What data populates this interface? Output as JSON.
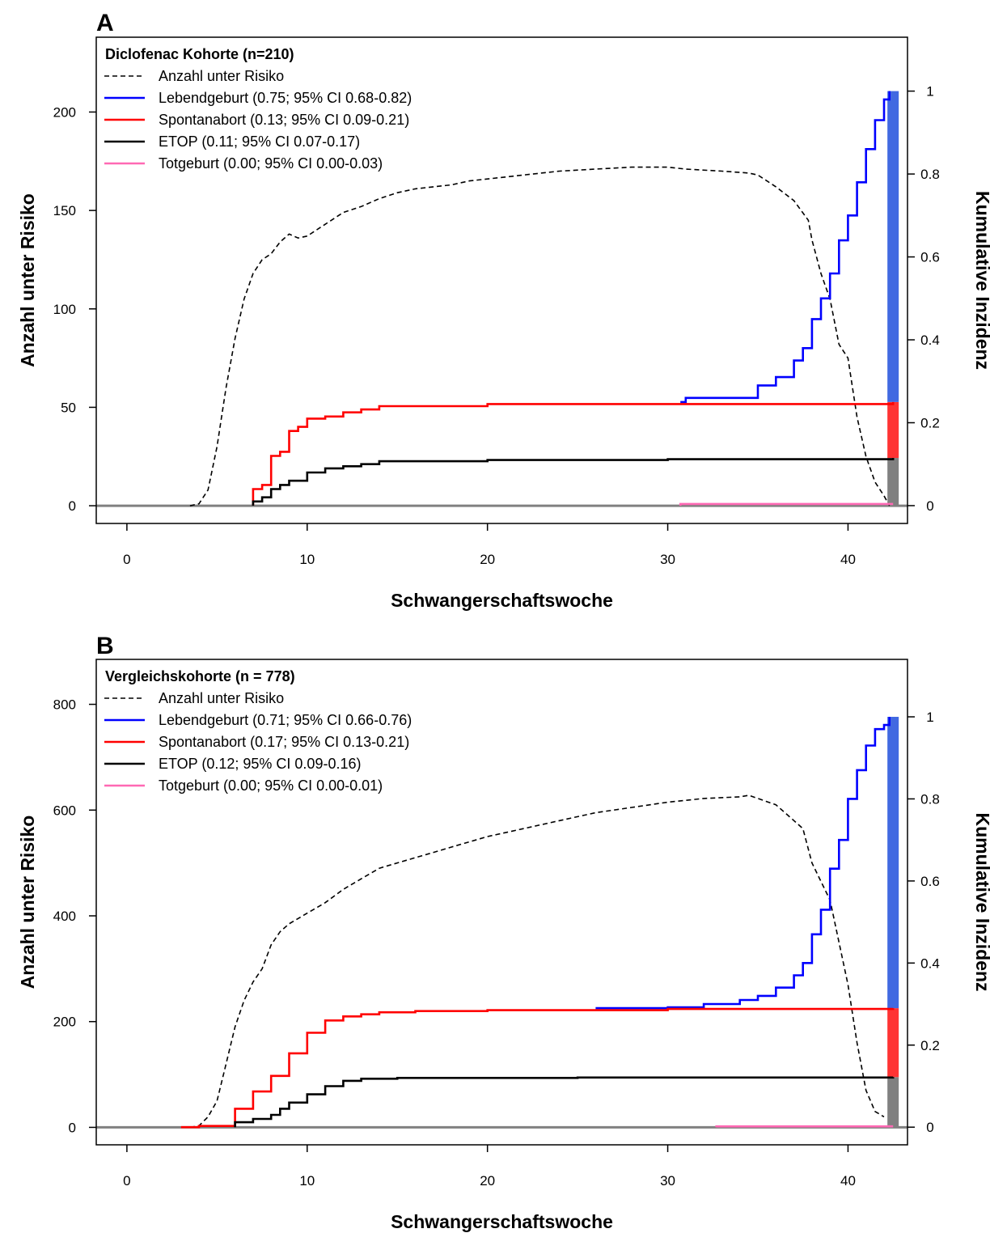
{
  "chart_data": [
    {
      "type": "line",
      "panel_label": "A",
      "title": "Diclofenac Kohorte (n=210)",
      "xlabel": "Schwangerschaftswoche",
      "ylabel": "Anzahl unter Risiko",
      "ylabel_right": "Kumulative Inzidenz",
      "xlim": [
        -1.7,
        43.3
      ],
      "ylim": [
        -9,
        238
      ],
      "ylim_right": [
        -0.043,
        1.13
      ],
      "x_ticks": [
        "0",
        "10",
        "20",
        "30",
        "40"
      ],
      "y_ticks": [
        "0",
        "50",
        "100",
        "150",
        "200"
      ],
      "y_ticks_right": [
        "0",
        "0.2",
        "0.4",
        "0.6",
        "0.8",
        "1"
      ],
      "legend_position": "top-left",
      "legend": [
        {
          "label": "Anzahl unter Risiko",
          "color": "#000000",
          "dash": true
        },
        {
          "label": "Lebendgeburt (0.75; 95% CI 0.68-0.82)",
          "color": "#0000ff",
          "dash": false
        },
        {
          "label": "Spontanabort (0.13; 95% CI 0.09-0.21)",
          "color": "#ff0000",
          "dash": false
        },
        {
          "label": "ETOP (0.11; 95% CI 0.07-0.17)",
          "color": "#000000",
          "dash": false
        },
        {
          "label": "Totgeburt (0.00; 95% CI 0.00-0.03)",
          "color": "#ff69b4",
          "dash": false
        }
      ],
      "stacked_bar": {
        "x": 42.5,
        "segments": [
          {
            "name": "ETOP",
            "from": 0,
            "to": 0.115,
            "color": "#808080"
          },
          {
            "name": "Spontanabort",
            "from": 0.115,
            "to": 0.25,
            "color": "#ff3333"
          },
          {
            "name": "Lebendgeburt",
            "from": 0.25,
            "to": 1.0,
            "color": "#4169e1"
          }
        ]
      },
      "series": [
        {
          "name": "Anzahl unter Risiko",
          "axis": "left",
          "color": "#000000",
          "dash": true,
          "step": false,
          "points": [
            [
              3.5,
              0
            ],
            [
              4,
              1
            ],
            [
              4.5,
              8
            ],
            [
              5,
              30
            ],
            [
              5.5,
              60
            ],
            [
              6,
              85
            ],
            [
              6.5,
              105
            ],
            [
              7,
              118
            ],
            [
              7.5,
              125
            ],
            [
              8,
              128
            ],
            [
              8.5,
              134
            ],
            [
              9,
              138
            ],
            [
              9.5,
              136
            ],
            [
              10,
              137
            ],
            [
              10.5,
              140
            ],
            [
              11,
              143
            ],
            [
              12,
              149
            ],
            [
              13,
              152
            ],
            [
              14,
              156
            ],
            [
              15,
              159
            ],
            [
              16,
              161
            ],
            [
              17,
              162
            ],
            [
              18,
              163
            ],
            [
              19,
              165
            ],
            [
              20,
              166
            ],
            [
              21,
              167
            ],
            [
              22,
              168
            ],
            [
              24,
              170
            ],
            [
              26,
              171
            ],
            [
              28,
              172
            ],
            [
              30,
              172
            ],
            [
              31,
              171
            ],
            [
              33,
              170
            ],
            [
              34.5,
              169
            ],
            [
              35,
              168
            ],
            [
              36,
              162
            ],
            [
              37,
              155
            ],
            [
              37.8,
              145
            ],
            [
              38,
              135
            ],
            [
              38.5,
              118
            ],
            [
              39,
              105
            ],
            [
              39.5,
              82
            ],
            [
              40,
              75
            ],
            [
              40.5,
              45
            ],
            [
              41,
              25
            ],
            [
              41.5,
              12
            ],
            [
              42,
              5
            ],
            [
              42.3,
              0
            ]
          ]
        },
        {
          "name": "Lebendgeburt",
          "axis": "right",
          "color": "#0000ff",
          "dash": false,
          "step": true,
          "points": [
            [
              30.7,
              0.25
            ],
            [
              31,
              0.26
            ],
            [
              34,
              0.26
            ],
            [
              35,
              0.29
            ],
            [
              36,
              0.31
            ],
            [
              37,
              0.35
            ],
            [
              37.5,
              0.38
            ],
            [
              38,
              0.45
            ],
            [
              38.5,
              0.5
            ],
            [
              39,
              0.56
            ],
            [
              39.5,
              0.64
            ],
            [
              40,
              0.7
            ],
            [
              40.5,
              0.78
            ],
            [
              41,
              0.86
            ],
            [
              41.5,
              0.93
            ],
            [
              42,
              0.98
            ],
            [
              42.3,
              1.0
            ]
          ]
        },
        {
          "name": "Spontanabort",
          "axis": "right",
          "color": "#ff0000",
          "dash": false,
          "step": true,
          "points": [
            [
              7,
              0
            ],
            [
              7.0,
              0.04
            ],
            [
              7.5,
              0.05
            ],
            [
              8,
              0.12
            ],
            [
              8.5,
              0.13
            ],
            [
              9,
              0.18
            ],
            [
              9.5,
              0.19
            ],
            [
              10,
              0.21
            ],
            [
              11,
              0.215
            ],
            [
              12,
              0.225
            ],
            [
              13,
              0.232
            ],
            [
              14,
              0.24
            ],
            [
              20,
              0.245
            ],
            [
              30.7,
              0.245
            ],
            [
              42.5,
              0.25
            ]
          ]
        },
        {
          "name": "ETOP",
          "axis": "right",
          "color": "#000000",
          "dash": false,
          "step": true,
          "points": [
            [
              7,
              0
            ],
            [
              7.0,
              0.01
            ],
            [
              7.5,
              0.02
            ],
            [
              8,
              0.04
            ],
            [
              8.5,
              0.05
            ],
            [
              9,
              0.06
            ],
            [
              10,
              0.08
            ],
            [
              11,
              0.09
            ],
            [
              12,
              0.095
            ],
            [
              13,
              0.1
            ],
            [
              14,
              0.107
            ],
            [
              20,
              0.11
            ],
            [
              30,
              0.112
            ],
            [
              42.5,
              0.115
            ]
          ]
        },
        {
          "name": "Totgeburt",
          "axis": "right",
          "color": "#ff69b4",
          "dash": false,
          "step": true,
          "points": [
            [
              30.7,
              0.0
            ],
            [
              30.7,
              0.004
            ],
            [
              42.5,
              0.004
            ]
          ]
        }
      ]
    },
    {
      "type": "line",
      "panel_label": "B",
      "title": "Vergleichskohorte (n = 778)",
      "xlabel": "Schwangerschaftswoche",
      "ylabel": "Anzahl unter Risiko",
      "ylabel_right": "Kumulative Inzidenz",
      "xlim": [
        -1.7,
        43.3
      ],
      "ylim": [
        -33,
        885
      ],
      "ylim_right": [
        -0.043,
        1.14
      ],
      "x_ticks": [
        "0",
        "10",
        "20",
        "30",
        "40"
      ],
      "y_ticks": [
        "0",
        "200",
        "400",
        "600",
        "800"
      ],
      "y_ticks_right": [
        "0",
        "0.2",
        "0.4",
        "0.6",
        "0.8",
        "1"
      ],
      "legend_position": "top-left",
      "legend": [
        {
          "label": "Anzahl unter Risiko",
          "color": "#000000",
          "dash": true
        },
        {
          "label": "Lebendgeburt (0.71; 95% CI 0.66-0.76)",
          "color": "#0000ff",
          "dash": false
        },
        {
          "label": "Spontanabort (0.17; 95% CI 0.13-0.21)",
          "color": "#ff0000",
          "dash": false
        },
        {
          "label": "ETOP (0.12; 95% CI 0.09-0.16)",
          "color": "#000000",
          "dash": false
        },
        {
          "label": "Totgeburt (0.00; 95% CI 0.00-0.01)",
          "color": "#ff69b4",
          "dash": false
        }
      ],
      "stacked_bar": {
        "x": 42.5,
        "segments": [
          {
            "name": "ETOP",
            "from": 0,
            "to": 0.122,
            "color": "#808080"
          },
          {
            "name": "Spontanabort",
            "from": 0.122,
            "to": 0.29,
            "color": "#ff3333"
          },
          {
            "name": "Lebendgeburt",
            "from": 0.29,
            "to": 1.0,
            "color": "#4169e1"
          }
        ]
      },
      "series": [
        {
          "name": "Anzahl unter Risiko",
          "axis": "left",
          "color": "#000000",
          "dash": true,
          "step": false,
          "points": [
            [
              3.5,
              0
            ],
            [
              4,
              3
            ],
            [
              4.5,
              20
            ],
            [
              5,
              50
            ],
            [
              5.5,
              120
            ],
            [
              6,
              190
            ],
            [
              6.5,
              240
            ],
            [
              7,
              275
            ],
            [
              7.5,
              300
            ],
            [
              8,
              345
            ],
            [
              8.5,
              370
            ],
            [
              9,
              385
            ],
            [
              9.5,
              395
            ],
            [
              10,
              405
            ],
            [
              11,
              425
            ],
            [
              12,
              450
            ],
            [
              13,
              470
            ],
            [
              14,
              490
            ],
            [
              15,
              500
            ],
            [
              16,
              510
            ],
            [
              17,
              520
            ],
            [
              18,
              530
            ],
            [
              19,
              540
            ],
            [
              20,
              550
            ],
            [
              22,
              565
            ],
            [
              24,
              580
            ],
            [
              26,
              595
            ],
            [
              28,
              605
            ],
            [
              30,
              615
            ],
            [
              32,
              622
            ],
            [
              34,
              625
            ],
            [
              34.5,
              628
            ],
            [
              35,
              622
            ],
            [
              36,
              610
            ],
            [
              37,
              580
            ],
            [
              37.5,
              565
            ],
            [
              38,
              500
            ],
            [
              38.5,
              465
            ],
            [
              39,
              430
            ],
            [
              39.5,
              350
            ],
            [
              40,
              270
            ],
            [
              40.5,
              160
            ],
            [
              41,
              70
            ],
            [
              41.5,
              30
            ],
            [
              42,
              20
            ]
          ]
        },
        {
          "name": "Lebendgeburt",
          "axis": "right",
          "color": "#0000ff",
          "dash": false,
          "step": true,
          "points": [
            [
              26,
              0.29
            ],
            [
              30,
              0.292
            ],
            [
              32,
              0.3
            ],
            [
              34,
              0.31
            ],
            [
              35,
              0.32
            ],
            [
              36,
              0.34
            ],
            [
              37,
              0.37
            ],
            [
              37.5,
              0.4
            ],
            [
              38,
              0.47
            ],
            [
              38.5,
              0.53
            ],
            [
              39,
              0.63
            ],
            [
              39.5,
              0.7
            ],
            [
              40,
              0.8
            ],
            [
              40.5,
              0.87
            ],
            [
              41,
              0.93
            ],
            [
              41.5,
              0.97
            ],
            [
              42,
              0.98
            ],
            [
              42.3,
              1.0
            ]
          ]
        },
        {
          "name": "Spontanabort",
          "axis": "right",
          "color": "#ff0000",
          "dash": false,
          "step": true,
          "points": [
            [
              3,
              0
            ],
            [
              4,
              0.003
            ],
            [
              6,
              0.003
            ],
            [
              6,
              0.045
            ],
            [
              7,
              0.045
            ],
            [
              7,
              0.087
            ],
            [
              8,
              0.1
            ],
            [
              8,
              0.125
            ],
            [
              9,
              0.135
            ],
            [
              9,
              0.18
            ],
            [
              10,
              0.19
            ],
            [
              10,
              0.23
            ],
            [
              11,
              0.235
            ],
            [
              11,
              0.26
            ],
            [
              12,
              0.27
            ],
            [
              13,
              0.275
            ],
            [
              14,
              0.28
            ],
            [
              16,
              0.283
            ],
            [
              20,
              0.285
            ],
            [
              30,
              0.288
            ],
            [
              42.5,
              0.29
            ]
          ]
        },
        {
          "name": "ETOP",
          "axis": "right",
          "color": "#000000",
          "dash": false,
          "step": true,
          "points": [
            [
              6,
              0
            ],
            [
              6,
              0.012
            ],
            [
              7,
              0.02
            ],
            [
              8,
              0.03
            ],
            [
              8.5,
              0.045
            ],
            [
              9,
              0.06
            ],
            [
              10,
              0.08
            ],
            [
              11,
              0.1
            ],
            [
              12,
              0.113
            ],
            [
              13,
              0.118
            ],
            [
              15,
              0.12
            ],
            [
              25,
              0.121
            ],
            [
              42.5,
              0.122
            ]
          ]
        },
        {
          "name": "Totgeburt",
          "axis": "right",
          "color": "#ff69b4",
          "dash": false,
          "step": true,
          "points": [
            [
              32.7,
              0.0
            ],
            [
              32.7,
              0.002
            ],
            [
              42.5,
              0.002
            ]
          ]
        }
      ]
    }
  ]
}
